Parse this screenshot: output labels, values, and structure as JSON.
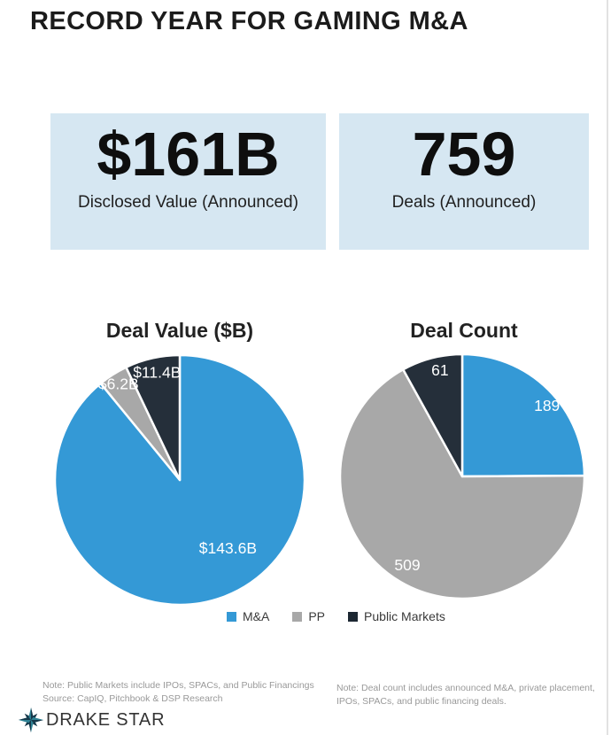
{
  "page": {
    "title": "RECORD YEAR FOR GAMING M&A"
  },
  "stats": [
    {
      "value": "$161B",
      "label": "Disclosed Value (Announced)"
    },
    {
      "value": "759",
      "label": "Deals (Announced)"
    }
  ],
  "chart_data": [
    {
      "type": "pie",
      "title": "Deal Value ($B)",
      "start_angle": 0,
      "direction": "clockwise",
      "slices": [
        {
          "name": "M&A",
          "value": 143.6,
          "label": "$143.6B",
          "color": "#3499d6",
          "label_angle": 144.8,
          "label_r": 0.66
        },
        {
          "name": "PP",
          "value": 6.2,
          "label": "$6.2B",
          "color": "#a8a8a8",
          "label_angle": 327.5,
          "label_r": 0.9
        },
        {
          "name": "Public Markets",
          "value": 11.4,
          "label": "$11.4B",
          "color": "#252f3a",
          "label_angle": 348.1,
          "label_r": 0.87
        }
      ]
    },
    {
      "type": "pie",
      "title": "Deal Count",
      "start_angle": 0,
      "direction": "clockwise",
      "slices": [
        {
          "name": "M&A",
          "value": 189,
          "label": "189",
          "color": "#3499d6",
          "label_angle": 50.2,
          "label_r": 0.89
        },
        {
          "name": "PP",
          "value": 509,
          "label": "509",
          "color": "#a8a8a8",
          "label_angle": 211.8,
          "label_r": 0.84
        },
        {
          "name": "Public Markets",
          "value": 61,
          "label": "61",
          "color": "#252f3a",
          "label_angle": 348.2,
          "label_r": 0.875
        }
      ]
    }
  ],
  "legend": {
    "items": [
      {
        "label": "M&A",
        "color": "#3499d6"
      },
      {
        "label": "PP",
        "color": "#a8a8a8"
      },
      {
        "label": "Public Markets",
        "color": "#1c2732"
      }
    ]
  },
  "notes": {
    "left": [
      "Note: Public Markets include IPOs, SPACs, and Public Financings",
      "Source: CapIQ, Pitchbook & DSP Research"
    ],
    "right": [
      "Note: Deal count includes announced M&A, private placement,",
      "IPOs, SPACs, and public financing deals."
    ]
  },
  "footer": {
    "logo_text": "DRAKE STAR"
  }
}
